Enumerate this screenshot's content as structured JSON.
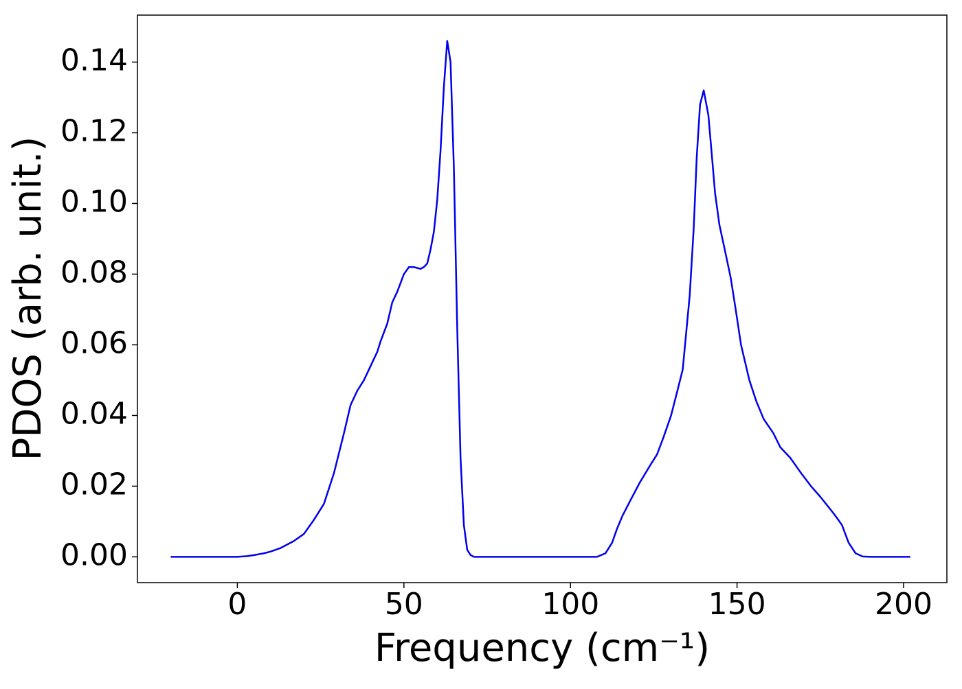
{
  "chart_data": {
    "type": "line",
    "xlabel": "Frequency (cm⁻¹)",
    "ylabel": "PDOS (arb. unit.)",
    "x": [
      -20,
      -10,
      0,
      3,
      5,
      8,
      10,
      13,
      17,
      20,
      23,
      26,
      29,
      32,
      34,
      36,
      38,
      40,
      42,
      43,
      45,
      46.5,
      48,
      50,
      51.5,
      53,
      55,
      56,
      57,
      58,
      59,
      60,
      61,
      62,
      63,
      64,
      65,
      66,
      67,
      68,
      69,
      70,
      71,
      80,
      100,
      108,
      110.5,
      112.5,
      114,
      115.6,
      118,
      120.8,
      124,
      126,
      128,
      130.2,
      132.1,
      133.7,
      134.5,
      135.8,
      137,
      137.9,
      138.9,
      140,
      141.4,
      142.5,
      143.4,
      144.7,
      146.3,
      148.1,
      149.6,
      151.2,
      153.7,
      155.8,
      158,
      160.9,
      163,
      166,
      169,
      172.2,
      175,
      178.4,
      180,
      181.5,
      183.5,
      185.6,
      187.7,
      190,
      195,
      202
    ],
    "series": [
      {
        "name": "PDOS",
        "color": "#0000ee",
        "values": [
          0,
          0,
          0,
          0.0002,
          0.0005,
          0.001,
          0.0015,
          0.0025,
          0.0045,
          0.0065,
          0.0105,
          0.015,
          0.0237,
          0.035,
          0.043,
          0.047,
          0.05,
          0.054,
          0.058,
          0.061,
          0.066,
          0.072,
          0.075,
          0.08,
          0.082,
          0.082,
          0.0815,
          0.082,
          0.083,
          0.087,
          0.092,
          0.101,
          0.115,
          0.133,
          0.146,
          0.14,
          0.11,
          0.065,
          0.028,
          0.009,
          0.002,
          0.0005,
          0,
          0,
          0,
          0,
          0.001,
          0.004,
          0.008,
          0.0116,
          0.016,
          0.021,
          0.026,
          0.029,
          0.034,
          0.04,
          0.047,
          0.053,
          0.061,
          0.074,
          0.093,
          0.113,
          0.128,
          0.132,
          0.125,
          0.113,
          0.103,
          0.094,
          0.087,
          0.079,
          0.07,
          0.06,
          0.05,
          0.044,
          0.039,
          0.035,
          0.031,
          0.028,
          0.024,
          0.02,
          0.017,
          0.013,
          0.011,
          0.009,
          0.004,
          0.001,
          0.0001,
          0,
          0,
          0
        ]
      }
    ],
    "xlim": [
      -30,
      213
    ],
    "ylim": [
      -0.0073,
      0.1533
    ],
    "xticks": [
      0,
      50,
      100,
      150,
      200
    ],
    "yticks": [
      {
        "value": 0,
        "label": "0.00"
      },
      {
        "value": 0.02,
        "label": "0.02"
      },
      {
        "value": 0.04,
        "label": "0.04"
      },
      {
        "value": 0.06,
        "label": "0.06"
      },
      {
        "value": 0.08,
        "label": "0.08"
      },
      {
        "value": 0.1,
        "label": "0.10"
      },
      {
        "value": 0.12,
        "label": "0.12"
      },
      {
        "value": 0.14,
        "label": "0.14"
      }
    ],
    "grid": false
  }
}
